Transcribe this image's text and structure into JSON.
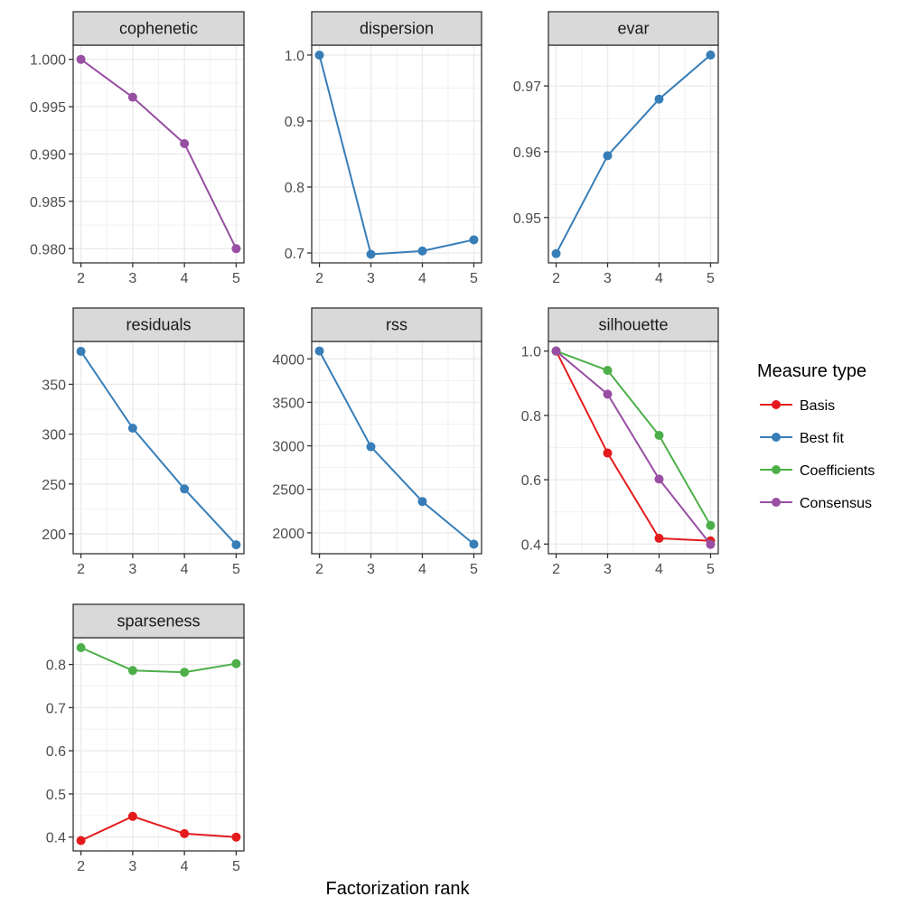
{
  "chart_data": {
    "type": "line",
    "xlabel": "Factorization rank",
    "x_ticks": [
      2,
      3,
      4,
      5
    ],
    "colors": {
      "Basis": "#E41A1C",
      "Best fit": "#377EB8",
      "Coefficients": "#4DAF4A",
      "Consensus": "#984EA3"
    },
    "legend": {
      "title": "Measure type",
      "placement": "right",
      "entries": [
        "Basis",
        "Best fit",
        "Coefficients",
        "Consensus"
      ]
    },
    "facets": [
      {
        "title": "cophenetic",
        "ylim": [
          0.9785,
          1.0015
        ],
        "y_ticks": [
          0.98,
          0.985,
          0.99,
          0.995,
          1.0
        ],
        "y_tick_labels": [
          "0.980",
          "0.985",
          "0.990",
          "0.995",
          "1.000"
        ],
        "series": [
          {
            "name": "Consensus",
            "x": [
              2,
              3,
              4,
              5
            ],
            "y": [
              1.0,
              0.996,
              0.9911,
              0.98
            ]
          }
        ]
      },
      {
        "title": "dispersion",
        "ylim": [
          0.685,
          1.015
        ],
        "y_ticks": [
          0.7,
          0.8,
          0.9,
          1.0
        ],
        "y_tick_labels": [
          "0.7",
          "0.8",
          "0.9",
          "1.0"
        ],
        "series": [
          {
            "name": "Best fit",
            "x": [
              2,
              3,
              4,
              5
            ],
            "y": [
              1.0,
              0.698,
              0.703,
              0.72
            ]
          }
        ]
      },
      {
        "title": "evar",
        "ylim": [
          0.9431,
          0.9762
        ],
        "y_ticks": [
          0.95,
          0.96,
          0.97
        ],
        "y_tick_labels": [
          "0.95",
          "0.96",
          "0.97"
        ],
        "series": [
          {
            "name": "Best fit",
            "x": [
              2,
              3,
              4,
              5
            ],
            "y": [
              0.9445,
              0.9594,
              0.968,
              0.9747
            ]
          }
        ]
      },
      {
        "title": "residuals",
        "ylim": [
          180,
          393
        ],
        "y_ticks": [
          200,
          250,
          300,
          350
        ],
        "y_tick_labels": [
          "200",
          "250",
          "300",
          "350"
        ],
        "series": [
          {
            "name": "Best fit",
            "x": [
              2,
              3,
              4,
              5
            ],
            "y": [
              383,
              306,
              245,
              189
            ]
          }
        ]
      },
      {
        "title": "rss",
        "ylim": [
          1760,
          4200
        ],
        "y_ticks": [
          2000,
          2500,
          3000,
          3500,
          4000
        ],
        "y_tick_labels": [
          "2000",
          "2500",
          "3000",
          "3500",
          "4000"
        ],
        "series": [
          {
            "name": "Best fit",
            "x": [
              2,
              3,
              4,
              5
            ],
            "y": [
              4090,
              2990,
              2360,
              1870
            ]
          }
        ]
      },
      {
        "title": "silhouette",
        "ylim": [
          0.37,
          1.03
        ],
        "y_ticks": [
          0.4,
          0.6,
          0.8,
          1.0
        ],
        "y_tick_labels": [
          "0.4",
          "0.6",
          "0.8",
          "1.0"
        ],
        "series": [
          {
            "name": "Basis",
            "x": [
              2,
              3,
              4,
              5
            ],
            "y": [
              1.0,
              0.683,
              0.418,
              0.41
            ]
          },
          {
            "name": "Coefficients",
            "x": [
              2,
              3,
              4,
              5
            ],
            "y": [
              1.0,
              0.94,
              0.738,
              0.458
            ]
          },
          {
            "name": "Consensus",
            "x": [
              2,
              3,
              4,
              5
            ],
            "y": [
              1.0,
              0.866,
              0.602,
              0.399
            ]
          }
        ]
      },
      {
        "title": "sparseness",
        "ylim": [
          0.368,
          0.862
        ],
        "y_ticks": [
          0.4,
          0.5,
          0.6,
          0.7,
          0.8
        ],
        "y_tick_labels": [
          "0.4",
          "0.5",
          "0.6",
          "0.7",
          "0.8"
        ],
        "series": [
          {
            "name": "Basis",
            "x": [
              2,
              3,
              4,
              5
            ],
            "y": [
              0.392,
              0.448,
              0.408,
              0.4
            ]
          },
          {
            "name": "Coefficients",
            "x": [
              2,
              3,
              4,
              5
            ],
            "y": [
              0.839,
              0.786,
              0.782,
              0.802
            ]
          }
        ]
      }
    ]
  }
}
